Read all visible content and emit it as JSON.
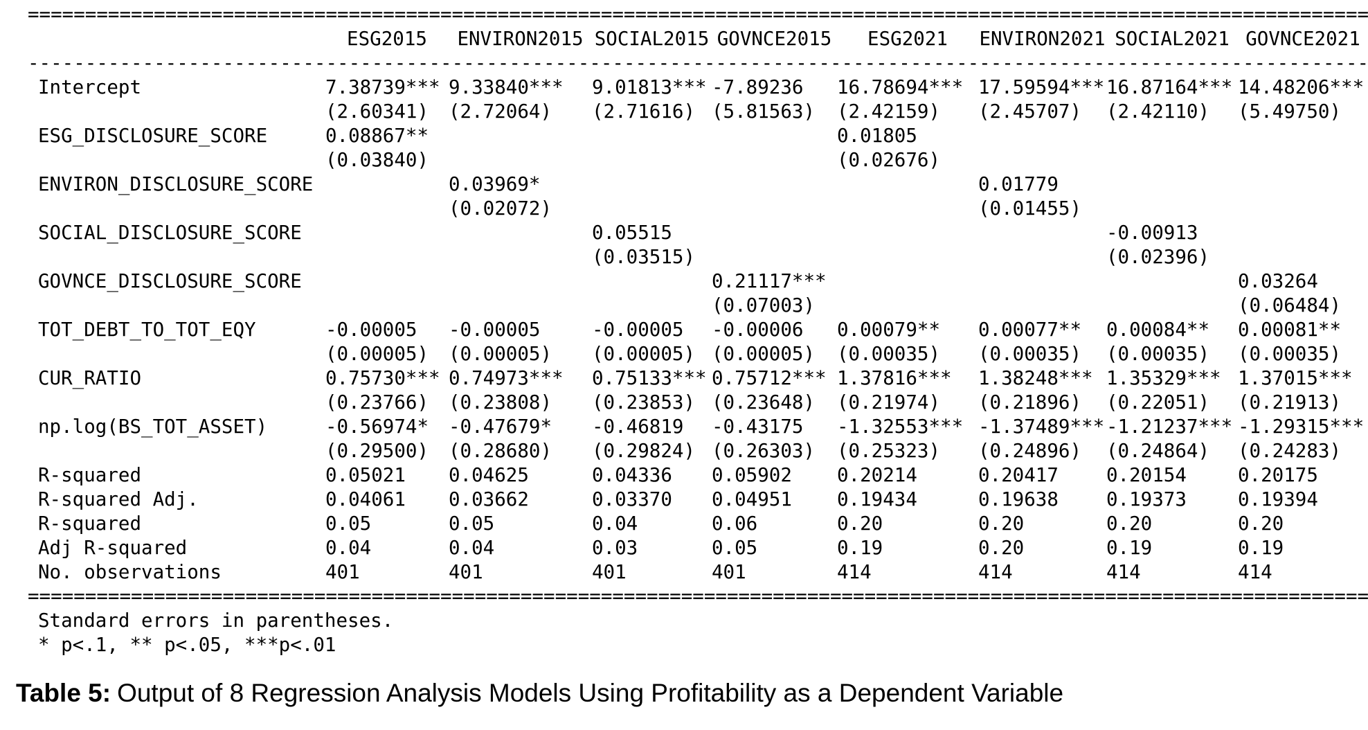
{
  "table": {
    "columns": [
      "ESG2015",
      "ENVIRON2015",
      "SOCIAL2015",
      "GOVNCE2015",
      "ESG2021",
      "ENVIRON2021",
      "SOCIAL2021",
      "GOVNCE2021"
    ],
    "coef_rows": [
      {
        "label": "Intercept",
        "coefs": [
          "7.38739***",
          "9.33840***",
          "9.01813***",
          "-7.89236",
          "16.78694***",
          "17.59594***",
          "16.87164***",
          "14.48206***"
        ],
        "ses": [
          "(2.60341)",
          "(2.72064)",
          "(2.71616)",
          "(5.81563)",
          "(2.42159)",
          "(2.45707)",
          "(2.42110)",
          "(5.49750)"
        ]
      },
      {
        "label": "ESG_DISCLOSURE_SCORE",
        "coefs": [
          "0.08867**",
          "",
          "",
          "",
          "0.01805",
          "",
          "",
          ""
        ],
        "ses": [
          "(0.03840)",
          "",
          "",
          "",
          "(0.02676)",
          "",
          "",
          ""
        ]
      },
      {
        "label": "ENVIRON_DISCLOSURE_SCORE",
        "coefs": [
          "",
          "0.03969*",
          "",
          "",
          "",
          "0.01779",
          "",
          ""
        ],
        "ses": [
          "",
          "(0.02072)",
          "",
          "",
          "",
          "(0.01455)",
          "",
          ""
        ]
      },
      {
        "label": "SOCIAL_DISCLOSURE_SCORE",
        "coefs": [
          "",
          "",
          "0.05515",
          "",
          "",
          "",
          "-0.00913",
          ""
        ],
        "ses": [
          "",
          "",
          "(0.03515)",
          "",
          "",
          "",
          "(0.02396)",
          ""
        ]
      },
      {
        "label": "GOVNCE_DISCLOSURE_SCORE",
        "coefs": [
          "",
          "",
          "",
          "0.21117***",
          "",
          "",
          "",
          "0.03264"
        ],
        "ses": [
          "",
          "",
          "",
          "(0.07003)",
          "",
          "",
          "",
          "(0.06484)"
        ]
      },
      {
        "label": "TOT_DEBT_TO_TOT_EQY",
        "coefs": [
          "-0.00005",
          "-0.00005",
          "-0.00005",
          "-0.00006",
          "0.00079**",
          "0.00077**",
          "0.00084**",
          "0.00081**"
        ],
        "ses": [
          "(0.00005)",
          "(0.00005)",
          "(0.00005)",
          "(0.00005)",
          "(0.00035)",
          "(0.00035)",
          "(0.00035)",
          "(0.00035)"
        ]
      },
      {
        "label": "CUR_RATIO",
        "coefs": [
          "0.75730***",
          "0.74973***",
          "0.75133***",
          "0.75712***",
          "1.37816***",
          "1.38248***",
          "1.35329***",
          "1.37015***"
        ],
        "ses": [
          "(0.23766)",
          "(0.23808)",
          "(0.23853)",
          "(0.23648)",
          "(0.21974)",
          "(0.21896)",
          "(0.22051)",
          "(0.21913)"
        ]
      },
      {
        "label": "np.log(BS_TOT_ASSET)",
        "coefs": [
          "-0.56974*",
          "-0.47679*",
          "-0.46819",
          "-0.43175",
          "-1.32553***",
          "-1.37489***",
          "-1.21237***",
          "-1.29315***"
        ],
        "ses": [
          "(0.29500)",
          "(0.28680)",
          "(0.29824)",
          "(0.26303)",
          "(0.25323)",
          "(0.24896)",
          "(0.24864)",
          "(0.24283)"
        ]
      }
    ],
    "stat_rows": [
      {
        "label": "R-squared",
        "values": [
          "0.05021",
          "0.04625",
          "0.04336",
          "0.05902",
          "0.20214",
          "0.20417",
          "0.20154",
          "0.20175"
        ]
      },
      {
        "label": "R-squared Adj.",
        "values": [
          "0.04061",
          "0.03662",
          "0.03370",
          "0.04951",
          "0.19434",
          "0.19638",
          "0.19373",
          "0.19394"
        ]
      },
      {
        "label": "R-squared",
        "values": [
          "0.05",
          "0.05",
          "0.04",
          "0.06",
          "0.20",
          "0.20",
          "0.20",
          "0.20"
        ]
      },
      {
        "label": "Adj R-squared",
        "values": [
          "0.04",
          "0.04",
          "0.03",
          "0.05",
          "0.19",
          "0.20",
          "0.19",
          "0.19"
        ]
      },
      {
        "label": "No. observations",
        "values": [
          "401",
          "401",
          "401",
          "401",
          "414",
          "414",
          "414",
          "414"
        ]
      }
    ],
    "notes": [
      "Standard errors in parentheses.",
      "* p<.1, ** p<.05, ***p<.01"
    ]
  },
  "caption": {
    "prefix": "Table 5:",
    "text": "Output of 8 Regression Analysis Models Using Profitability as a Dependent Variable"
  }
}
